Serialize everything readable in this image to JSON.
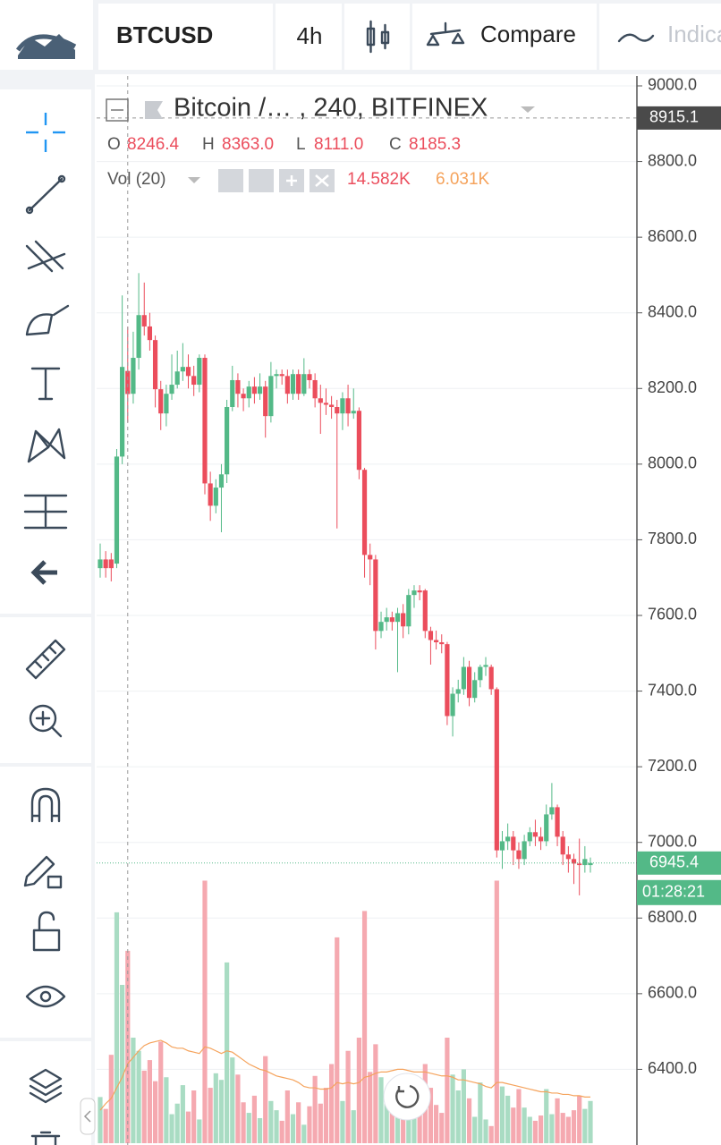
{
  "toolbar": {
    "symbol": "BTCUSD",
    "interval": "4h",
    "compare": "Compare",
    "indicators": "Indicators"
  },
  "chart_data": {
    "type": "candlestick",
    "title": "Bitcoin /… , 240, BITFINEX",
    "ohlc_legend": [
      {
        "key": "O",
        "label": "8246.4"
      },
      {
        "key": "H",
        "label": "8363.0"
      },
      {
        "key": "L",
        "label": "8111.0"
      },
      {
        "key": "C",
        "label": "8185.3"
      }
    ],
    "volume_legend": {
      "name": "Vol (20)",
      "value": {
        "value": 14.582,
        "label": "14.582K"
      },
      "ma": {
        "value": 6.031,
        "label": "6.031K"
      }
    },
    "open": [
      7725,
      7748,
      7748,
      7737,
      8020,
      8246.4,
      8186,
      8281,
      8394,
      8364,
      8328,
      8198,
      8134,
      8186,
      8210,
      8245,
      8257,
      8233,
      8210,
      8281,
      7949,
      7890,
      7938,
      7973,
      8151,
      8222,
      8186,
      8174,
      8205,
      8186,
      8205,
      8127,
      8233,
      8238,
      8233,
      8186,
      8238,
      8186,
      8238,
      8222,
      8174,
      8162,
      8157,
      8151,
      8134,
      8174,
      8134,
      8141,
      7985,
      7760,
      7748,
      7559,
      7583,
      7595,
      7583,
      7606,
      7571,
      7654,
      7666,
      7666,
      7559,
      7535,
      7529,
      7524,
      7334,
      7393,
      7405,
      7464,
      7382,
      7429,
      7464,
      7464,
      7405,
      6979,
      7003,
      7015,
      6979,
      6956,
      7003,
      7027,
      7015,
      7003,
      7074,
      7093,
      7015,
      6968,
      6956,
      6944,
      6940,
      6940
    ],
    "high": [
      7790,
      7770,
      7765,
      8040,
      8446,
      8363.0,
      8350,
      8505,
      8480,
      8400,
      8340,
      8220,
      8210,
      8290,
      8300,
      8320,
      8290,
      8260,
      8290,
      8290,
      7980,
      7960,
      8000,
      8170,
      8260,
      8240,
      8200,
      8220,
      8230,
      8240,
      8220,
      8270,
      8250,
      8250,
      8250,
      8250,
      8250,
      8280,
      8250,
      8240,
      8210,
      8200,
      8180,
      8170,
      8190,
      8210,
      8200,
      8150,
      7990,
      7790,
      7760,
      7610,
      7620,
      7610,
      7620,
      7630,
      7670,
      7680,
      7680,
      7670,
      7570,
      7560,
      7550,
      7530,
      7410,
      7430,
      7490,
      7480,
      7450,
      7470,
      7490,
      7470,
      7410,
      7030,
      7050,
      7030,
      7000,
      7020,
      7040,
      7060,
      7040,
      7100,
      7157,
      7100,
      7030,
      6990,
      6970,
      7010,
      6990,
      6960
    ],
    "low": [
      7700,
      7700,
      7690,
      7725,
      8000,
      8111.0,
      8160,
      8250,
      8340,
      8300,
      8150,
      8090,
      8100,
      8170,
      8200,
      8220,
      8200,
      8180,
      8190,
      7920,
      7850,
      7870,
      7820,
      7950,
      8140,
      8150,
      8140,
      8150,
      8160,
      8170,
      8070,
      8110,
      8200,
      8210,
      8160,
      8170,
      8170,
      8180,
      8200,
      8150,
      8080,
      8130,
      8120,
      7830,
      8090,
      8100,
      8120,
      7960,
      7700,
      7680,
      7510,
      7540,
      7560,
      7560,
      7450,
      7540,
      7550,
      7620,
      7640,
      7540,
      7470,
      7510,
      7500,
      7310,
      7280,
      7370,
      7390,
      7360,
      7370,
      7410,
      7440,
      7390,
      6960,
      6930,
      6980,
      6940,
      6930,
      6940,
      6990,
      6990,
      6980,
      6990,
      7060,
      6990,
      6940,
      6920,
      6890,
      6860,
      6920,
      6920
    ],
    "close": [
      7748,
      7725,
      7725,
      8020,
      8257,
      8185.3,
      8281,
      8394,
      8364,
      8328,
      8198,
      8134,
      8186,
      8210,
      8245,
      8257,
      8233,
      8210,
      8281,
      7949,
      7890,
      7938,
      7973,
      8151,
      8222,
      8186,
      8174,
      8205,
      8186,
      8205,
      8127,
      8233,
      8238,
      8233,
      8186,
      8238,
      8186,
      8238,
      8222,
      8174,
      8162,
      8157,
      8151,
      8134,
      8174,
      8134,
      8141,
      7985,
      7760,
      7748,
      7559,
      7583,
      7595,
      7583,
      7606,
      7571,
      7654,
      7666,
      7661,
      7559,
      7535,
      7529,
      7524,
      7334,
      7393,
      7405,
      7464,
      7382,
      7429,
      7464,
      7469,
      7405,
      6979,
      7003,
      7015,
      6979,
      6956,
      7003,
      7027,
      7015,
      7003,
      7074,
      7093,
      7015,
      6968,
      6956,
      6944,
      6940,
      6956,
      6945.4
    ],
    "volume": [
      3.5,
      2.6,
      6.7,
      17.5,
      12.0,
      14.582,
      8.0,
      7.0,
      5.5,
      6.3,
      4.7,
      7.7,
      5.0,
      2.2,
      3.0,
      4.4,
      2.4,
      4.0,
      1.8,
      19.9,
      4.2,
      5.3,
      4.8,
      13.7,
      6.5,
      5.2,
      3.1,
      2.3,
      3.6,
      1.9,
      6.6,
      3.2,
      2.5,
      1.7,
      4.0,
      2.2,
      3.1,
      1.4,
      2.8,
      5.1,
      3.0,
      4.2,
      6.0,
      15.6,
      3.2,
      7.0,
      2.5,
      8.0,
      17.6,
      5.4,
      7.5,
      5.0,
      3.6,
      3.2,
      2.8,
      2.2,
      3.9,
      2.5,
      2.6,
      6.0,
      4.2,
      2.9,
      2.3,
      8.0,
      5.2,
      4.0,
      5.6,
      3.4,
      2.0,
      4.6,
      1.8,
      1.3,
      19.9,
      4.3,
      3.6,
      2.7,
      4.1,
      2.7,
      2.0,
      1.7,
      2.1,
      4.1,
      2.2,
      3.4,
      2.3,
      2.0,
      2.5,
      3.6,
      2.6,
      3.2
    ],
    "volume_ma": [
      2.5,
      3.0,
      3.4,
      4.2,
      5.0,
      6.031,
      6.5,
      7.0,
      7.4,
      7.6,
      7.7,
      7.8,
      7.6,
      7.3,
      7.2,
      7.2,
      7.0,
      6.9,
      6.8,
      7.3,
      7.2,
      7.0,
      6.8,
      7.0,
      6.9,
      6.6,
      6.3,
      6.0,
      5.8,
      5.6,
      5.5,
      5.3,
      5.1,
      5.0,
      4.9,
      4.8,
      4.6,
      4.3,
      4.2,
      4.2,
      4.1,
      4.1,
      4.2,
      4.6,
      4.5,
      4.6,
      4.5,
      4.6,
      5.0,
      5.1,
      5.3,
      5.4,
      5.4,
      5.5,
      5.6,
      5.6,
      5.5,
      5.4,
      5.4,
      5.4,
      5.3,
      5.2,
      5.1,
      5.1,
      5.0,
      4.8,
      4.8,
      4.7,
      4.6,
      4.5,
      4.3,
      4.2,
      4.6,
      4.6,
      4.5,
      4.4,
      4.3,
      4.2,
      4.1,
      4.0,
      3.9,
      3.9,
      3.8,
      3.8,
      3.7,
      3.7,
      3.6,
      3.6,
      3.5,
      3.5
    ],
    "ylim": [
      6200,
      9026
    ],
    "yticks": [
      {
        "value": 6400,
        "label": "6400.0"
      },
      {
        "value": 6600,
        "label": "6600.0"
      },
      {
        "value": 6800,
        "label": "6800.0"
      },
      {
        "value": 7000,
        "label": "7000.0"
      },
      {
        "value": 7200,
        "label": "7200.0"
      },
      {
        "value": 7400,
        "label": "7400.0"
      },
      {
        "value": 7600,
        "label": "7600.0"
      },
      {
        "value": 7800,
        "label": "7800.0"
      },
      {
        "value": 8000,
        "label": "8000.0"
      },
      {
        "value": 8200,
        "label": "8200.0"
      },
      {
        "value": 8400,
        "label": "8400.0"
      },
      {
        "value": 8600,
        "label": "8600.0"
      },
      {
        "value": 8800,
        "label": "8800.0"
      },
      {
        "value": 9000,
        "label": "9000.0"
      }
    ],
    "vol_ylim": [
      0,
      20
    ],
    "grid": true,
    "up_color": "#53b987",
    "down_color": "#eb4d5c",
    "volume_up_color": "#a9dcc3",
    "volume_down_color": "#f5a9b0",
    "ma_color": "#f5a35c",
    "crosshair_index": 5,
    "crosshair_price": 8915.1,
    "last_price": 6945.4,
    "countdown": "01:28:21"
  }
}
